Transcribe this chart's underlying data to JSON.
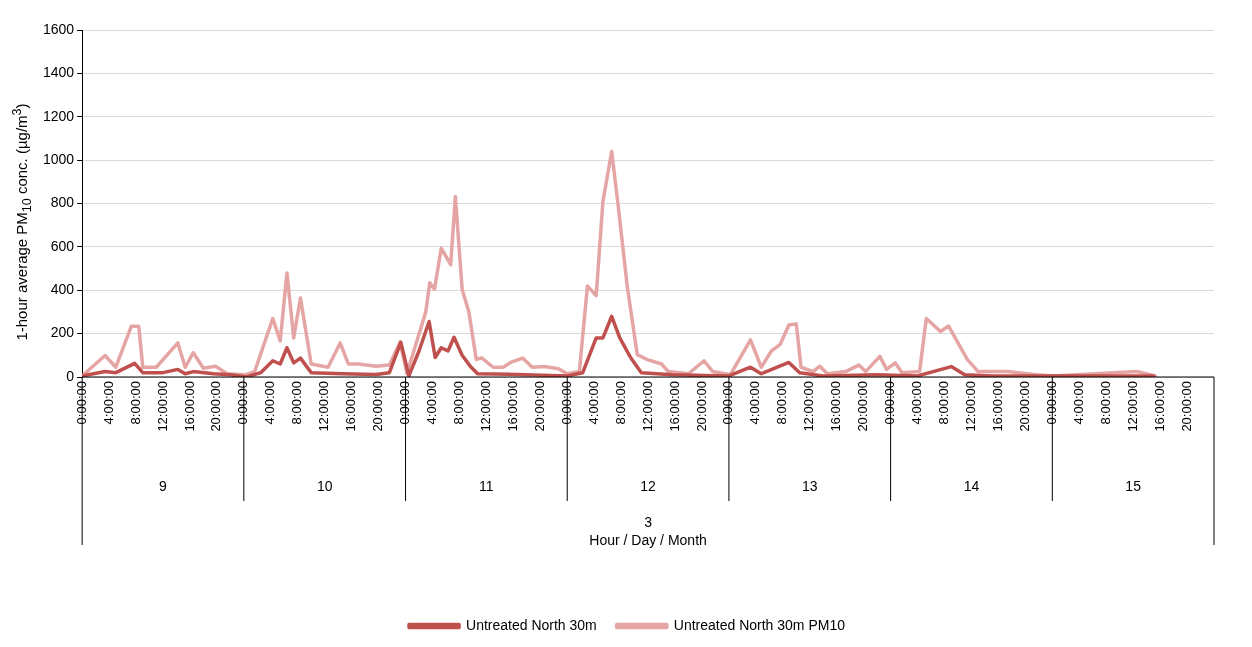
{
  "chart_data": {
    "type": "line",
    "ylabel": "1-hour average PM$_{10}$ conc. (µg/m$^{3}$)",
    "annotations": [
      "9",
      "10",
      "11",
      "12",
      "13",
      "14",
      "15",
      "3",
      "Hour / Day / Month"
    ],
    "xlim": [
      "--03-09T00:00",
      "--03-16T00:00"
    ],
    "xticks": [
      {
        "value": "--03-09T00:00",
        "label": "0:00:00"
      },
      {
        "value": "--03-09T04:00",
        "label": "4:00:00"
      },
      {
        "value": "--03-09T08:00",
        "label": "8:00:00"
      },
      {
        "value": "--03-09T12:00",
        "label": "12:00:00"
      },
      {
        "value": "--03-09T16:00",
        "label": "16:00:00"
      },
      {
        "value": "--03-09T20:00",
        "label": "20:00:00"
      },
      {
        "value": "--03-10T00:00",
        "label": "0:00:00"
      },
      {
        "value": "--03-10T04:00",
        "label": "4:00:00"
      },
      {
        "value": "--03-10T08:00",
        "label": "8:00:00"
      },
      {
        "value": "--03-10T12:00",
        "label": "12:00:00"
      },
      {
        "value": "--03-10T16:00",
        "label": "16:00:00"
      },
      {
        "value": "--03-10T20:00",
        "label": "20:00:00"
      },
      {
        "value": "--03-11T00:00",
        "label": "0:00:00"
      },
      {
        "value": "--03-11T04:00",
        "label": "4:00:00"
      },
      {
        "value": "--03-11T08:00",
        "label": "8:00:00"
      },
      {
        "value": "--03-11T12:00",
        "label": "12:00:00"
      },
      {
        "value": "--03-11T16:00",
        "label": "16:00:00"
      },
      {
        "value": "--03-11T20:00",
        "label": "20:00:00"
      },
      {
        "value": "--03-12T00:00",
        "label": "0:00:00"
      },
      {
        "value": "--03-12T04:00",
        "label": "4:00:00"
      },
      {
        "value": "--03-12T08:00",
        "label": "8:00:00"
      },
      {
        "value": "--03-12T12:00",
        "label": "12:00:00"
      },
      {
        "value": "--03-12T16:00",
        "label": "16:00:00"
      },
      {
        "value": "--03-12T20:00",
        "label": "20:00:00"
      },
      {
        "value": "--03-13T00:00",
        "label": "0:00:00"
      },
      {
        "value": "--03-13T04:00",
        "label": "4:00:00"
      },
      {
        "value": "--03-13T08:00",
        "label": "8:00:00"
      },
      {
        "value": "--03-13T12:00",
        "label": "12:00:00"
      },
      {
        "value": "--03-13T16:00",
        "label": "16:00:00"
      },
      {
        "value": "--03-13T20:00",
        "label": "20:00:00"
      },
      {
        "value": "--03-14T00:00",
        "label": "0:00:00"
      },
      {
        "value": "--03-14T04:00",
        "label": "4:00:00"
      },
      {
        "value": "--03-14T08:00",
        "label": "8:00:00"
      },
      {
        "value": "--03-14T12:00",
        "label": "12:00:00"
      },
      {
        "value": "--03-14T16:00",
        "label": "16:00:00"
      },
      {
        "value": "--03-14T20:00",
        "label": "20:00:00"
      },
      {
        "value": "--03-15T00:00",
        "label": "0:00:00"
      },
      {
        "value": "--03-15T04:00",
        "label": "4:00:00"
      },
      {
        "value": "--03-15T08:00",
        "label": "8:00:00"
      },
      {
        "value": "--03-15T12:00",
        "label": "12:00:00"
      },
      {
        "value": "--03-15T16:00",
        "label": "16:00:00"
      },
      {
        "value": "--03-15T20:00",
        "label": "20:00:00"
      }
    ],
    "ylim": [
      0,
      1600
    ],
    "yticks": [
      0,
      200,
      400,
      600,
      800,
      1000,
      1200,
      1400,
      1600
    ],
    "grid": "y",
    "legend": "bottom",
    "marker": "none",
    "series": [
      {
        "name": "Untreated North 30m",
        "color": "#c0504d",
        "x": [
          "--03-09T00:00",
          "--03-09T03:24",
          "--03-09T05:00",
          "--03-09T07:48",
          "--03-09T09:00",
          "--03-09T12:00",
          "--03-09T14:12",
          "--03-09T15:18",
          "--03-09T16:30",
          "--03-09T19:30",
          "--03-09T22:00",
          "--03-10T00:24",
          "--03-10T02:30",
          "--03-10T04:18",
          "--03-10T05:24",
          "--03-10T06:24",
          "--03-10T07:24",
          "--03-10T08:24",
          "--03-10T10:00",
          "--03-10T14:36",
          "--03-10T19:36",
          "--03-10T21:36",
          "--03-10T23:18",
          "--03-11T00:30",
          "--03-11T02:00",
          "--03-11T03:30",
          "--03-11T04:24",
          "--03-11T05:18",
          "--03-11T06:18",
          "--03-11T07:12",
          "--03-11T08:24",
          "--03-11T09:36",
          "--03-11T10:42",
          "--03-11T16:36",
          "--03-12T00:00",
          "--03-12T02:18",
          "--03-12T04:18",
          "--03-12T05:18",
          "--03-12T06:36",
          "--03-12T07:48",
          "--03-12T09:24",
          "--03-12T11:00",
          "--03-12T15:36",
          "--03-13T00:00",
          "--03-13T03:12",
          "--03-13T04:48",
          "--03-13T08:54",
          "--03-13T10:30",
          "--03-13T14:00",
          "--03-13T22:00",
          "--03-14T04:00",
          "--03-14T09:00",
          "--03-14T11:00",
          "--03-14T15:00",
          "--03-15T15:00"
        ],
        "values": [
          5,
          25,
          20,
          63,
          20,
          20,
          35,
          15,
          25,
          15,
          10,
          0,
          20,
          75,
          60,
          135,
          65,
          87,
          20,
          15,
          12,
          20,
          160,
          5,
          120,
          256,
          90,
          135,
          120,
          183,
          100,
          50,
          15,
          12,
          5,
          20,
          180,
          180,
          280,
          180,
          90,
          20,
          10,
          5,
          45,
          15,
          67,
          20,
          5,
          10,
          5,
          48,
          10,
          5,
          5
        ]
      },
      {
        "name": "Untreated North 30m PM10",
        "color": "#e6a5a5",
        "x": [
          "--03-09T00:00",
          "--03-09T03:24",
          "--03-09T05:00",
          "--03-09T07:18",
          "--03-09T08:24",
          "--03-09T09:00",
          "--03-09T11:00",
          "--03-09T14:12",
          "--03-09T15:18",
          "--03-09T16:30",
          "--03-09T18:00",
          "--03-09T19:48",
          "--03-09T21:30",
          "--03-10T00:12",
          "--03-10T01:36",
          "--03-10T04:18",
          "--03-10T05:24",
          "--03-10T06:24",
          "--03-10T07:24",
          "--03-10T08:24",
          "--03-10T10:00",
          "--03-10T12:30",
          "--03-10T14:18",
          "--03-10T15:30",
          "--03-10T17:00",
          "--03-10T19:36",
          "--03-10T21:36",
          "--03-10T23:12",
          "--03-11T00:12",
          "--03-11T03:00",
          "--03-11T03:36",
          "--03-11T04:18",
          "--03-11T05:18",
          "--03-11T06:42",
          "--03-11T07:24",
          "--03-11T08:24",
          "--03-11T09:24",
          "--03-11T10:30",
          "--03-11T11:18",
          "--03-11T13:00",
          "--03-11T14:30",
          "--03-11T15:36",
          "--03-11T17:24",
          "--03-11T18:48",
          "--03-11T20:36",
          "--03-11T22:42",
          "--03-12T00:00",
          "--03-12T01:48",
          "--03-12T03:00",
          "--03-12T04:18",
          "--03-12T05:18",
          "--03-12T06:36",
          "--03-12T07:36",
          "--03-12T08:54",
          "--03-12T10:24",
          "--03-12T11:54",
          "--03-12T14:00",
          "--03-12T15:00",
          "--03-12T18:00",
          "--03-12T20:18",
          "--03-12T21:36",
          "--03-13T00:12",
          "--03-13T03:12",
          "--03-13T04:48",
          "--03-13T06:18",
          "--03-13T07:36",
          "--03-13T08:54",
          "--03-13T10:00",
          "--03-13T10:42",
          "--03-13T12:30",
          "--03-13T13:30",
          "--03-13T14:36",
          "--03-13T17:18",
          "--03-13T19:18",
          "--03-13T20:18",
          "--03-13T22:24",
          "--03-13T23:24",
          "--03-14T00:42",
          "--03-14T01:42",
          "--03-14T04:18",
          "--03-14T05:18",
          "--03-14T07:24",
          "--03-14T08:36",
          "--03-14T11:24",
          "--03-14T13:00",
          "--03-14T17:30",
          "--03-14T21:36",
          "--03-15T00:12",
          "--03-15T12:30",
          "--03-15T15:18"
        ],
        "values": [
          5,
          99,
          45,
          234,
          234,
          45,
          45,
          157,
          45,
          112,
          40,
          50,
          15,
          10,
          25,
          270,
          166,
          480,
          180,
          364,
          60,
          45,
          157,
          60,
          60,
          50,
          55,
          162,
          15,
          300,
          435,
          405,
          594,
          518,
          832,
          405,
          300,
          81,
          88,
          45,
          45,
          67,
          87,
          45,
          48,
          38,
          15,
          25,
          420,
          375,
          810,
          1040,
          780,
          420,
          103,
          80,
          60,
          25,
          15,
          75,
          25,
          10,
          171,
          45,
          120,
          150,
          240,
          245,
          45,
          25,
          50,
          15,
          25,
          55,
          25,
          95,
          35,
          65,
          20,
          25,
          270,
          210,
          235,
          80,
          25,
          25,
          10,
          5,
          25,
          5
        ]
      }
    ]
  }
}
